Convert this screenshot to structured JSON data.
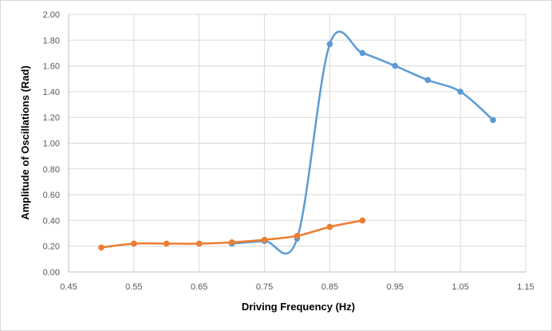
{
  "chart_data": {
    "type": "line",
    "title": "",
    "xlabel": "Driving Frequency (Hz)",
    "ylabel": "Amplitude of Oscillations (Rad)",
    "xlim": [
      0.45,
      1.15
    ],
    "ylim": [
      0,
      2
    ],
    "x_ticks": [
      "0.45",
      "0.55",
      "0.65",
      "0.75",
      "0.85",
      "0.95",
      "1.05",
      "1.15"
    ],
    "y_ticks": [
      "0.00",
      "0.20",
      "0.40",
      "0.60",
      "0.80",
      "1.00",
      "1.20",
      "1.40",
      "1.60",
      "1.80",
      "2.00"
    ],
    "grid": true,
    "smooth": true,
    "series": [
      {
        "color": "#5b9bd5",
        "points": [
          [
            0.7,
            0.22
          ],
          [
            0.75,
            0.24
          ],
          [
            0.8,
            0.26
          ],
          [
            0.85,
            1.77
          ],
          [
            0.9,
            1.7
          ],
          [
            0.95,
            1.6
          ],
          [
            1.0,
            1.49
          ],
          [
            1.05,
            1.4
          ],
          [
            1.1,
            1.18
          ]
        ]
      },
      {
        "color": "#ed7d31",
        "points": [
          [
            0.5,
            0.19
          ],
          [
            0.55,
            0.22
          ],
          [
            0.6,
            0.22
          ],
          [
            0.65,
            0.22
          ],
          [
            0.7,
            0.23
          ],
          [
            0.75,
            0.25
          ],
          [
            0.8,
            0.28
          ],
          [
            0.85,
            0.35
          ],
          [
            0.9,
            0.4
          ]
        ]
      }
    ]
  }
}
